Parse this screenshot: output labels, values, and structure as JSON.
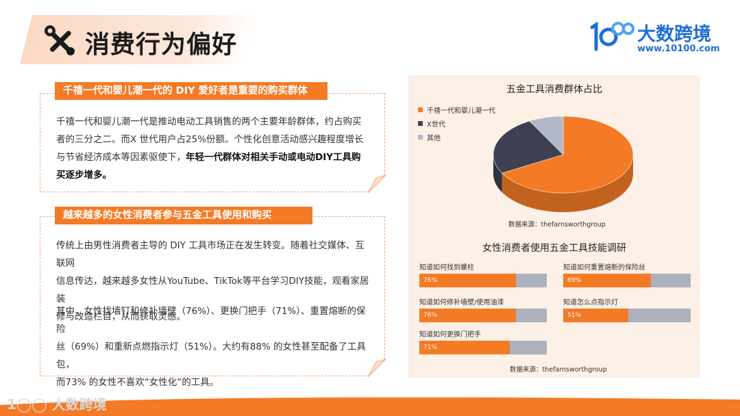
{
  "header": {
    "title": "消费行为偏好"
  },
  "logo": {
    "name": "大数跨境",
    "url": "www.10100.com"
  },
  "section1": {
    "heading": "千禧一代和婴儿潮一代的 DIY 爱好者是重要的购买群体",
    "paragraph_lines": [
      "千禧一代和婴儿潮一代是推动电动工具销售的两个主要年龄群体，约占购买",
      "者的三分之二。而X 世代用户占25%份额。个性化创意活动感兴趣程度增长"
    ],
    "line3_normal": "与节省经济成本等因素驱使下，",
    "line3_bold": "年轻一代群体对相关手动或电动DIY工具购",
    "line4_bold": "买逐步增多。"
  },
  "section2": {
    "heading": "越来越多的女性消费者参与五金工具使用和购买",
    "paragraph1_lines": [
      "传统上由男性消费者主导的 DIY 工具市场正在发生转变。随着社交媒体、互联网",
      "信息传达，越来越多女性从YouTube、TikTok等平台学习DIY技能，观看家居装",
      "修与改造栏目，从而获取灵感。"
    ],
    "paragraph2_lines": [
      "其中，女性找墙钉和修补墙壁（76%）、更换门把手（71%）、重置熔断的保险",
      "丝（69%）和重新点燃指示灯（51%）。大约有88% 的女性甚至配备了工具包，",
      "而73% 的女性不喜欢“女性化”的工具。"
    ]
  },
  "chart_data": [
    {
      "type": "pie",
      "title": "五金工具消费群体占比",
      "labels": [
        "千禧一代和婴儿潮一代",
        "X世代",
        "其他"
      ],
      "values": [
        67,
        25,
        8
      ],
      "colors": [
        "#f47a25",
        "#3c4050",
        "#b3b8c8"
      ],
      "legend": "left",
      "source": "数据来源：thefarnsworthgroup"
    },
    {
      "type": "bar",
      "title": "女性消费者使用五金工具技能调研",
      "categories": [
        "知道如何找到螺柱",
        "知道如何重置熔断的保险丝",
        "知道如何修补墙壁/使用油漆",
        "知道怎么点指示灯",
        "知道如何更换门把手"
      ],
      "values": [
        76,
        69,
        76,
        51,
        71
      ],
      "value_labels": [
        "76%",
        "69%",
        "76%",
        "51%",
        "71%"
      ],
      "ylim": [
        0,
        100
      ],
      "colors": {
        "fill": "#f47a25",
        "track": "#acb1bd"
      },
      "source": "数据来源：thefarnsworthgroup"
    }
  ],
  "footer": {
    "logo_text": "大数跨境"
  }
}
